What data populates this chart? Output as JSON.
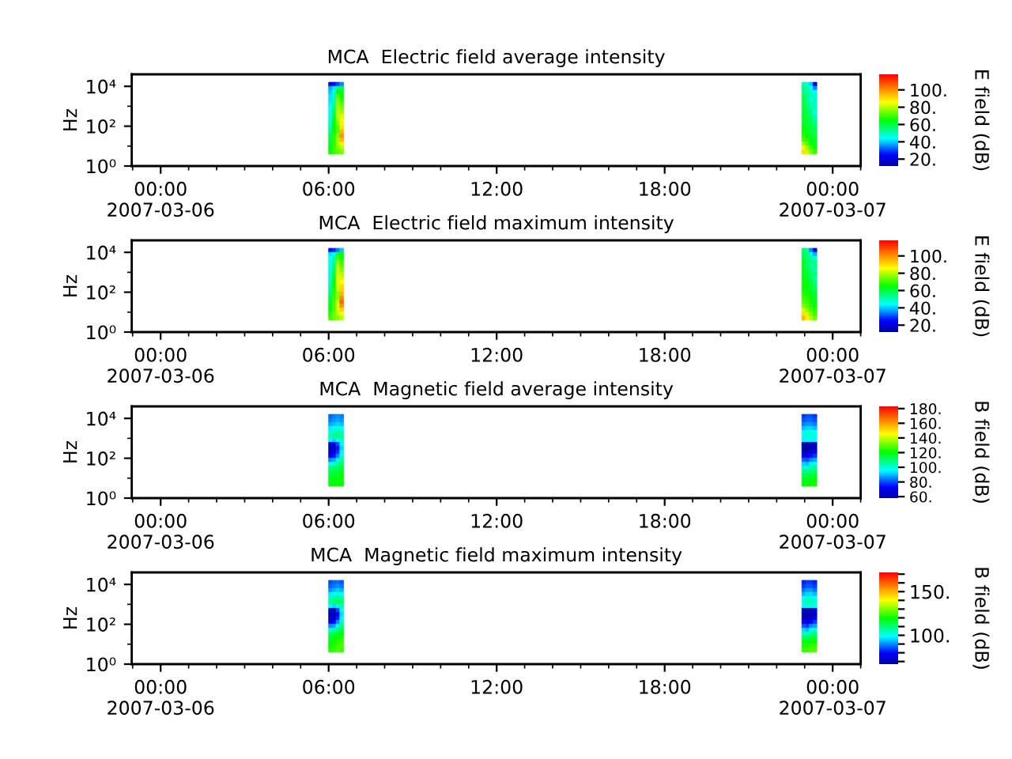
{
  "chart_data": [
    {
      "type": "heatmap",
      "title": "MCA  Electric field average intensity",
      "ylabel": "Hz",
      "clabel": "E field (dB)",
      "log": "y",
      "x": [
        "2007-03-06T06:04",
        "2007-03-06T06:12",
        "2007-03-06T06:20",
        "2007-03-06T06:28",
        "2007-03-06T06:36",
        "2007-03-06T22:50",
        "2007-03-06T22:58",
        "2007-03-06T23:06",
        "2007-03-06T23:14",
        "2007-03-06T23:22"
      ],
      "y": [
        12600,
        7900,
        5000,
        3200,
        2000,
        1300,
        790,
        500,
        320,
        200,
        130,
        79,
        50,
        32,
        20,
        13,
        7.9,
        5.0
      ],
      "cells": [
        [
          22,
          25,
          30,
          35,
          null,
          null,
          50,
          48,
          40,
          22
        ],
        [
          38,
          42,
          55,
          60,
          null,
          null,
          55,
          52,
          45,
          35
        ],
        [
          40,
          45,
          65,
          62,
          null,
          null,
          55,
          50,
          48,
          45
        ],
        [
          42,
          48,
          72,
          65,
          null,
          null,
          58,
          55,
          50,
          48
        ],
        [
          42,
          50,
          75,
          68,
          null,
          null,
          58,
          55,
          45,
          50
        ],
        [
          43,
          52,
          78,
          72,
          null,
          null,
          60,
          56,
          50,
          48
        ],
        [
          44,
          55,
          78,
          75,
          null,
          null,
          58,
          58,
          52,
          50
        ],
        [
          45,
          58,
          80,
          78,
          null,
          null,
          60,
          58,
          55,
          45
        ],
        [
          46,
          60,
          80,
          82,
          null,
          null,
          62,
          60,
          55,
          50
        ],
        [
          48,
          62,
          78,
          85,
          null,
          null,
          60,
          62,
          58,
          52
        ],
        [
          50,
          64,
          75,
          88,
          null,
          null,
          62,
          60,
          58,
          55
        ],
        [
          52,
          65,
          72,
          90,
          null,
          null,
          65,
          62,
          60,
          58
        ],
        [
          55,
          66,
          72,
          95,
          null,
          null,
          66,
          64,
          60,
          58
        ],
        [
          58,
          68,
          75,
          100,
          null,
          null,
          68,
          65,
          62,
          60
        ],
        [
          60,
          68,
          78,
          95,
          null,
          null,
          70,
          68,
          64,
          62
        ],
        [
          62,
          68,
          78,
          88,
          null,
          null,
          78,
          72,
          66,
          64
        ],
        [
          64,
          70,
          75,
          80,
          null,
          null,
          85,
          78,
          70,
          66
        ],
        [
          66,
          70,
          72,
          75,
          null,
          null,
          90,
          82,
          75,
          70
        ]
      ],
      "clim": [
        12,
        118
      ],
      "cticks": [
        {
          "value": 20,
          "label": "20."
        },
        {
          "value": 40,
          "label": "40."
        },
        {
          "value": 60,
          "label": "60."
        },
        {
          "value": 80,
          "label": "80."
        },
        {
          "value": 100,
          "label": "100."
        }
      ],
      "xlim": [
        "2007-03-05T22:58",
        "2007-03-07T01:00"
      ],
      "xticks": [
        {
          "value": "2007-03-05T23:00",
          "label": null
        },
        {
          "value": "2007-03-06T00:00",
          "label": "00:00\n2007-03-06"
        },
        {
          "value": "2007-03-06T01:00",
          "label": null
        },
        {
          "value": "2007-03-06T02:00",
          "label": null
        },
        {
          "value": "2007-03-06T03:00",
          "label": null
        },
        {
          "value": "2007-03-06T04:00",
          "label": null
        },
        {
          "value": "2007-03-06T05:00",
          "label": null
        },
        {
          "value": "2007-03-06T06:00",
          "label": "06:00"
        },
        {
          "value": "2007-03-06T07:00",
          "label": null
        },
        {
          "value": "2007-03-06T08:00",
          "label": null
        },
        {
          "value": "2007-03-06T09:00",
          "label": null
        },
        {
          "value": "2007-03-06T10:00",
          "label": null
        },
        {
          "value": "2007-03-06T11:00",
          "label": null
        },
        {
          "value": "2007-03-06T12:00",
          "label": "12:00"
        },
        {
          "value": "2007-03-06T13:00",
          "label": null
        },
        {
          "value": "2007-03-06T14:00",
          "label": null
        },
        {
          "value": "2007-03-06T15:00",
          "label": null
        },
        {
          "value": "2007-03-06T16:00",
          "label": null
        },
        {
          "value": "2007-03-06T17:00",
          "label": null
        },
        {
          "value": "2007-03-06T18:00",
          "label": "18:00"
        },
        {
          "value": "2007-03-06T19:00",
          "label": null
        },
        {
          "value": "2007-03-06T20:00",
          "label": null
        },
        {
          "value": "2007-03-06T21:00",
          "label": null
        },
        {
          "value": "2007-03-06T22:00",
          "label": null
        },
        {
          "value": "2007-03-06T23:00",
          "label": null
        },
        {
          "value": "2007-03-07T00:00",
          "label": "00:00\n2007-03-07"
        },
        {
          "value": "2007-03-07T01:00",
          "label": null
        }
      ],
      "ylim": [
        1,
        40000
      ],
      "yticks": [
        {
          "value": 1,
          "label": "10⁰"
        },
        {
          "value": 10,
          "label": null
        },
        {
          "value": 100,
          "label": "10²"
        },
        {
          "value": 1000,
          "label": null
        },
        {
          "value": 10000,
          "label": "10⁴"
        }
      ]
    },
    {
      "type": "heatmap",
      "title": "MCA  Electric field maximum intensity",
      "ylabel": "Hz",
      "clabel": "E field (dB)",
      "log": "y",
      "x": [
        "2007-03-06T06:04",
        "2007-03-06T06:12",
        "2007-03-06T06:20",
        "2007-03-06T06:28",
        "2007-03-06T06:36",
        "2007-03-06T22:50",
        "2007-03-06T22:58",
        "2007-03-06T23:06",
        "2007-03-06T23:14",
        "2007-03-06T23:22"
      ],
      "y": [
        12600,
        7900,
        5000,
        3200,
        2000,
        1300,
        790,
        500,
        320,
        200,
        130,
        79,
        50,
        32,
        20,
        13,
        7.9,
        5.0
      ],
      "cells": [
        [
          26,
          28,
          34,
          40,
          null,
          null,
          55,
          52,
          35,
          20
        ],
        [
          42,
          46,
          60,
          64,
          null,
          null,
          58,
          56,
          48,
          38
        ],
        [
          44,
          50,
          70,
          66,
          null,
          null,
          60,
          55,
          52,
          48
        ],
        [
          46,
          52,
          76,
          70,
          null,
          null,
          62,
          58,
          55,
          52
        ],
        [
          46,
          54,
          80,
          72,
          null,
          null,
          62,
          58,
          50,
          55
        ],
        [
          47,
          56,
          82,
          76,
          null,
          null,
          64,
          60,
          55,
          52
        ],
        [
          48,
          58,
          82,
          80,
          null,
          null,
          62,
          62,
          56,
          55
        ],
        [
          49,
          62,
          84,
          82,
          null,
          null,
          64,
          62,
          58,
          50
        ],
        [
          50,
          64,
          84,
          86,
          null,
          null,
          66,
          64,
          60,
          55
        ],
        [
          52,
          66,
          82,
          90,
          null,
          null,
          64,
          66,
          62,
          56
        ],
        [
          54,
          68,
          80,
          92,
          null,
          null,
          66,
          64,
          62,
          58
        ],
        [
          56,
          69,
          76,
          95,
          null,
          null,
          68,
          66,
          64,
          62
        ],
        [
          59,
          70,
          76,
          100,
          null,
          null,
          70,
          68,
          64,
          62
        ],
        [
          62,
          72,
          80,
          105,
          null,
          null,
          72,
          70,
          66,
          64
        ],
        [
          64,
          72,
          82,
          100,
          null,
          null,
          75,
          72,
          68,
          66
        ],
        [
          66,
          72,
          82,
          92,
          null,
          null,
          82,
          76,
          70,
          68
        ],
        [
          68,
          74,
          80,
          85,
          null,
          null,
          90,
          82,
          75,
          70
        ],
        [
          70,
          74,
          76,
          80,
          null,
          null,
          95,
          88,
          80,
          74
        ]
      ],
      "clim": [
        12,
        118
      ],
      "cticks": [
        {
          "value": 20,
          "label": "20."
        },
        {
          "value": 40,
          "label": "40."
        },
        {
          "value": 60,
          "label": "60."
        },
        {
          "value": 80,
          "label": "80."
        },
        {
          "value": 100,
          "label": "100."
        }
      ],
      "xlim": [
        "2007-03-05T22:58",
        "2007-03-07T01:00"
      ],
      "xticks": [
        {
          "value": "2007-03-05T23:00",
          "label": null
        },
        {
          "value": "2007-03-06T00:00",
          "label": "00:00\n2007-03-06"
        },
        {
          "value": "2007-03-06T01:00",
          "label": null
        },
        {
          "value": "2007-03-06T02:00",
          "label": null
        },
        {
          "value": "2007-03-06T03:00",
          "label": null
        },
        {
          "value": "2007-03-06T04:00",
          "label": null
        },
        {
          "value": "2007-03-06T05:00",
          "label": null
        },
        {
          "value": "2007-03-06T06:00",
          "label": "06:00"
        },
        {
          "value": "2007-03-06T07:00",
          "label": null
        },
        {
          "value": "2007-03-06T08:00",
          "label": null
        },
        {
          "value": "2007-03-06T09:00",
          "label": null
        },
        {
          "value": "2007-03-06T10:00",
          "label": null
        },
        {
          "value": "2007-03-06T11:00",
          "label": null
        },
        {
          "value": "2007-03-06T12:00",
          "label": "12:00"
        },
        {
          "value": "2007-03-06T13:00",
          "label": null
        },
        {
          "value": "2007-03-06T14:00",
          "label": null
        },
        {
          "value": "2007-03-06T15:00",
          "label": null
        },
        {
          "value": "2007-03-06T16:00",
          "label": null
        },
        {
          "value": "2007-03-06T17:00",
          "label": null
        },
        {
          "value": "2007-03-06T18:00",
          "label": "18:00"
        },
        {
          "value": "2007-03-06T19:00",
          "label": null
        },
        {
          "value": "2007-03-06T20:00",
          "label": null
        },
        {
          "value": "2007-03-06T21:00",
          "label": null
        },
        {
          "value": "2007-03-06T22:00",
          "label": null
        },
        {
          "value": "2007-03-06T23:00",
          "label": null
        },
        {
          "value": "2007-03-07T00:00",
          "label": "00:00\n2007-03-07"
        },
        {
          "value": "2007-03-07T01:00",
          "label": null
        }
      ],
      "ylim": [
        1,
        40000
      ],
      "yticks": [
        {
          "value": 1,
          "label": "10⁰"
        },
        {
          "value": 10,
          "label": null
        },
        {
          "value": 100,
          "label": "10²"
        },
        {
          "value": 1000,
          "label": null
        },
        {
          "value": 10000,
          "label": "10⁴"
        }
      ]
    },
    {
      "type": "heatmap",
      "title": "MCA  Magnetic field average intensity",
      "ylabel": "Hz",
      "clabel": "B field (dB)",
      "log": "y",
      "x": [
        "2007-03-06T06:04",
        "2007-03-06T06:12",
        "2007-03-06T06:20",
        "2007-03-06T06:28",
        "2007-03-06T06:36",
        "2007-03-06T22:50",
        "2007-03-06T22:58",
        "2007-03-06T23:06",
        "2007-03-06T23:14",
        "2007-03-06T23:22"
      ],
      "y": [
        12600,
        7900,
        5000,
        3200,
        2000,
        1300,
        790,
        500,
        320,
        200,
        130,
        79,
        50,
        32,
        20,
        13,
        7.9,
        5.0
      ],
      "cells": [
        [
          82,
          84,
          86,
          84,
          null,
          null,
          78,
          80,
          80,
          78
        ],
        [
          84,
          86,
          88,
          86,
          null,
          null,
          80,
          82,
          82,
          80
        ],
        [
          88,
          90,
          92,
          90,
          null,
          null,
          84,
          86,
          86,
          84
        ],
        [
          94,
          96,
          98,
          96,
          null,
          null,
          90,
          92,
          92,
          90
        ],
        [
          100,
          102,
          105,
          102,
          null,
          null,
          95,
          98,
          98,
          96
        ],
        [
          104,
          106,
          108,
          106,
          null,
          null,
          98,
          100,
          100,
          98
        ],
        [
          95,
          92,
          98,
          100,
          null,
          null,
          95,
          96,
          97,
          95
        ],
        [
          70,
          68,
          80,
          95,
          null,
          null,
          62,
          60,
          62,
          65
        ],
        [
          62,
          64,
          75,
          92,
          null,
          null,
          60,
          58,
          60,
          62
        ],
        [
          65,
          66,
          78,
          95,
          null,
          null,
          64,
          62,
          66,
          70
        ],
        [
          72,
          75,
          85,
          100,
          null,
          null,
          72,
          70,
          75,
          78
        ],
        [
          85,
          88,
          95,
          105,
          null,
          null,
          82,
          80,
          85,
          88
        ],
        [
          98,
          100,
          105,
          110,
          null,
          null,
          92,
          90,
          95,
          98
        ],
        [
          108,
          110,
          112,
          115,
          null,
          null,
          100,
          100,
          104,
          106
        ],
        [
          112,
          115,
          116,
          118,
          null,
          null,
          108,
          108,
          110,
          112
        ],
        [
          115,
          118,
          118,
          120,
          null,
          null,
          114,
          114,
          116,
          116
        ],
        [
          118,
          120,
          120,
          122,
          null,
          null,
          118,
          118,
          120,
          120
        ],
        [
          118,
          120,
          122,
          120,
          null,
          null,
          120,
          120,
          122,
          122
        ]
      ],
      "clim": [
        58,
        183
      ],
      "cticks": [
        {
          "value": 60,
          "label": "60."
        },
        {
          "value": 80,
          "label": "80."
        },
        {
          "value": 100,
          "label": "100."
        },
        {
          "value": 120,
          "label": "120."
        },
        {
          "value": 140,
          "label": "140."
        },
        {
          "value": 160,
          "label": "160."
        },
        {
          "value": 180,
          "label": "180."
        }
      ],
      "xlim": [
        "2007-03-05T22:58",
        "2007-03-07T01:00"
      ],
      "xticks": [
        {
          "value": "2007-03-05T23:00",
          "label": null
        },
        {
          "value": "2007-03-06T00:00",
          "label": "00:00\n2007-03-06"
        },
        {
          "value": "2007-03-06T01:00",
          "label": null
        },
        {
          "value": "2007-03-06T02:00",
          "label": null
        },
        {
          "value": "2007-03-06T03:00",
          "label": null
        },
        {
          "value": "2007-03-06T04:00",
          "label": null
        },
        {
          "value": "2007-03-06T05:00",
          "label": null
        },
        {
          "value": "2007-03-06T06:00",
          "label": "06:00"
        },
        {
          "value": "2007-03-06T07:00",
          "label": null
        },
        {
          "value": "2007-03-06T08:00",
          "label": null
        },
        {
          "value": "2007-03-06T09:00",
          "label": null
        },
        {
          "value": "2007-03-06T10:00",
          "label": null
        },
        {
          "value": "2007-03-06T11:00",
          "label": null
        },
        {
          "value": "2007-03-06T12:00",
          "label": "12:00"
        },
        {
          "value": "2007-03-06T13:00",
          "label": null
        },
        {
          "value": "2007-03-06T14:00",
          "label": null
        },
        {
          "value": "2007-03-06T15:00",
          "label": null
        },
        {
          "value": "2007-03-06T16:00",
          "label": null
        },
        {
          "value": "2007-03-06T17:00",
          "label": null
        },
        {
          "value": "2007-03-06T18:00",
          "label": "18:00"
        },
        {
          "value": "2007-03-06T19:00",
          "label": null
        },
        {
          "value": "2007-03-06T20:00",
          "label": null
        },
        {
          "value": "2007-03-06T21:00",
          "label": null
        },
        {
          "value": "2007-03-06T22:00",
          "label": null
        },
        {
          "value": "2007-03-06T23:00",
          "label": null
        },
        {
          "value": "2007-03-07T00:00",
          "label": "00:00\n2007-03-07"
        },
        {
          "value": "2007-03-07T01:00",
          "label": null
        }
      ],
      "ylim": [
        1,
        40000
      ],
      "yticks": [
        {
          "value": 1,
          "label": "10⁰"
        },
        {
          "value": 10,
          "label": null
        },
        {
          "value": 100,
          "label": "10²"
        },
        {
          "value": 1000,
          "label": null
        },
        {
          "value": 10000,
          "label": "10⁴"
        }
      ]
    },
    {
      "type": "heatmap",
      "title": "MCA  Magnetic field maximum intensity",
      "ylabel": "Hz",
      "clabel": "B field (dB)",
      "log": "y",
      "x": [
        "2007-03-06T06:04",
        "2007-03-06T06:12",
        "2007-03-06T06:20",
        "2007-03-06T06:28",
        "2007-03-06T06:36",
        "2007-03-06T22:50",
        "2007-03-06T22:58",
        "2007-03-06T23:06",
        "2007-03-06T23:14",
        "2007-03-06T23:22"
      ],
      "y": [
        12600,
        7900,
        5000,
        3200,
        2000,
        1300,
        790,
        500,
        320,
        200,
        130,
        79,
        50,
        32,
        20,
        13,
        7.9,
        5.0
      ],
      "cells": [
        [
          85,
          87,
          88,
          86,
          null,
          null,
          82,
          84,
          84,
          82
        ],
        [
          87,
          89,
          90,
          88,
          null,
          null,
          84,
          86,
          86,
          84
        ],
        [
          90,
          93,
          95,
          93,
          null,
          null,
          88,
          91,
          91,
          88
        ],
        [
          97,
          100,
          102,
          100,
          null,
          null,
          93,
          96,
          96,
          94
        ],
        [
          104,
          106,
          108,
          106,
          null,
          null,
          100,
          102,
          102,
          100
        ],
        [
          108,
          110,
          112,
          110,
          null,
          null,
          102,
          104,
          104,
          102
        ],
        [
          100,
          96,
          102,
          105,
          null,
          null,
          100,
          100,
          102,
          100
        ],
        [
          75,
          72,
          85,
          100,
          null,
          null,
          72,
          70,
          72,
          75
        ],
        [
          70,
          70,
          80,
          96,
          null,
          null,
          70,
          68,
          70,
          72
        ],
        [
          72,
          72,
          82,
          98,
          null,
          null,
          72,
          70,
          74,
          78
        ],
        [
          78,
          80,
          90,
          104,
          null,
          null,
          78,
          76,
          80,
          84
        ],
        [
          90,
          92,
          100,
          110,
          null,
          null,
          86,
          84,
          90,
          92
        ],
        [
          102,
          105,
          110,
          114,
          null,
          null,
          96,
          94,
          98,
          102
        ],
        [
          112,
          114,
          116,
          118,
          null,
          null,
          104,
          104,
          108,
          110
        ],
        [
          116,
          118,
          120,
          122,
          null,
          null,
          112,
          112,
          114,
          116
        ],
        [
          118,
          120,
          122,
          124,
          null,
          null,
          118,
          118,
          120,
          120
        ],
        [
          120,
          122,
          124,
          126,
          null,
          null,
          122,
          122,
          124,
          124
        ],
        [
          122,
          124,
          126,
          124,
          null,
          null,
          124,
          124,
          126,
          126
        ]
      ],
      "clim": [
        67,
        172
      ],
      "cticks": [
        {
          "value": 70,
          "label": null
        },
        {
          "value": 80,
          "label": null
        },
        {
          "value": 90,
          "label": null
        },
        {
          "value": 100,
          "label": "100."
        },
        {
          "value": 110,
          "label": null
        },
        {
          "value": 120,
          "label": null
        },
        {
          "value": 130,
          "label": null
        },
        {
          "value": 140,
          "label": null
        },
        {
          "value": 150,
          "label": "150."
        },
        {
          "value": 160,
          "label": null
        },
        {
          "value": 170,
          "label": null
        }
      ],
      "xlim": [
        "2007-03-05T22:58",
        "2007-03-07T01:00"
      ],
      "xticks": [
        {
          "value": "2007-03-05T23:00",
          "label": null
        },
        {
          "value": "2007-03-06T00:00",
          "label": "00:00\n2007-03-06"
        },
        {
          "value": "2007-03-06T01:00",
          "label": null
        },
        {
          "value": "2007-03-06T02:00",
          "label": null
        },
        {
          "value": "2007-03-06T03:00",
          "label": null
        },
        {
          "value": "2007-03-06T04:00",
          "label": null
        },
        {
          "value": "2007-03-06T05:00",
          "label": null
        },
        {
          "value": "2007-03-06T06:00",
          "label": "06:00"
        },
        {
          "value": "2007-03-06T07:00",
          "label": null
        },
        {
          "value": "2007-03-06T08:00",
          "label": null
        },
        {
          "value": "2007-03-06T09:00",
          "label": null
        },
        {
          "value": "2007-03-06T10:00",
          "label": null
        },
        {
          "value": "2007-03-06T11:00",
          "label": null
        },
        {
          "value": "2007-03-06T12:00",
          "label": "12:00"
        },
        {
          "value": "2007-03-06T13:00",
          "label": null
        },
        {
          "value": "2007-03-06T14:00",
          "label": null
        },
        {
          "value": "2007-03-06T15:00",
          "label": null
        },
        {
          "value": "2007-03-06T16:00",
          "label": null
        },
        {
          "value": "2007-03-06T17:00",
          "label": null
        },
        {
          "value": "2007-03-06T18:00",
          "label": "18:00"
        },
        {
          "value": "2007-03-06T19:00",
          "label": null
        },
        {
          "value": "2007-03-06T20:00",
          "label": null
        },
        {
          "value": "2007-03-06T21:00",
          "label": null
        },
        {
          "value": "2007-03-06T22:00",
          "label": null
        },
        {
          "value": "2007-03-06T23:00",
          "label": null
        },
        {
          "value": "2007-03-07T00:00",
          "label": "00:00\n2007-03-07"
        },
        {
          "value": "2007-03-07T01:00",
          "label": null
        }
      ],
      "ylim": [
        1,
        40000
      ],
      "yticks": [
        {
          "value": 1,
          "label": "10⁰"
        },
        {
          "value": 10,
          "label": null
        },
        {
          "value": 100,
          "label": "10²"
        },
        {
          "value": 1000,
          "label": null
        },
        {
          "value": 10000,
          "label": "10⁴"
        }
      ]
    }
  ]
}
